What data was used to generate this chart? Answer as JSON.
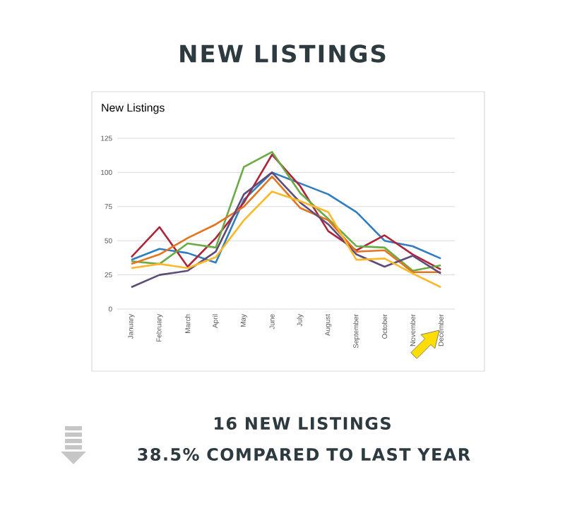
{
  "chart_data": {
    "type": "line",
    "title": "NEW LISTINGS",
    "subtitle": "New Listings",
    "categories": [
      "January",
      "February",
      "March",
      "April",
      "May",
      "June",
      "July",
      "August",
      "September",
      "October",
      "November",
      "December"
    ],
    "series": [
      {
        "color": "#2f7ec1",
        "values": [
          36,
          44,
          41,
          34,
          80,
          100,
          92,
          84,
          71,
          50,
          46,
          37
        ]
      },
      {
        "color": "#b0243a",
        "values": [
          38,
          60,
          31,
          52,
          78,
          113,
          90,
          57,
          43,
          54,
          40,
          29
        ]
      },
      {
        "color": "#6bab45",
        "values": [
          35,
          33,
          48,
          45,
          104,
          115,
          85,
          66,
          46,
          45,
          28,
          32
        ]
      },
      {
        "color": "#e5741f",
        "values": [
          33,
          40,
          52,
          62,
          75,
          97,
          74,
          65,
          42,
          43,
          27,
          27
        ]
      },
      {
        "color": "#5e4b7a",
        "values": [
          16,
          25,
          28,
          42,
          84,
          100,
          78,
          62,
          40,
          31,
          39,
          26
        ]
      },
      {
        "color": "#fbb829",
        "values": [
          30,
          33,
          30,
          38,
          65,
          86,
          79,
          71,
          36,
          37,
          26,
          16
        ]
      }
    ],
    "ylim": [
      0,
      125
    ],
    "yticks": [
      0,
      25,
      50,
      75,
      100,
      125
    ],
    "grid": "y",
    "annotations": [
      "16 NEW LISTINGS",
      "38.5% COMPARED TO LAST YEAR"
    ]
  }
}
